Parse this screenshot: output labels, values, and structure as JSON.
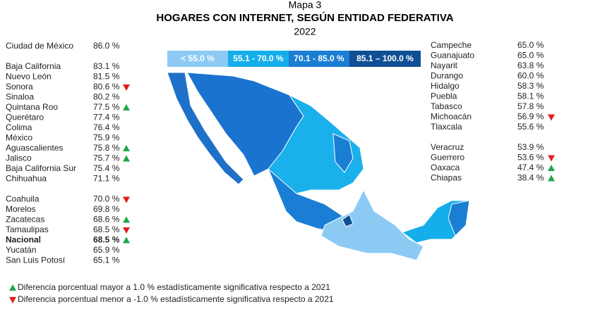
{
  "header": {
    "label": "Mapa 3",
    "title": "HOGARES CON INTERNET, SEGÚN ENTIDAD FEDERATIVA",
    "year": "2022"
  },
  "legend": [
    {
      "label": "< 55.0 %",
      "color": "#8ccaf4"
    },
    {
      "label": "55.1 - 70.0 %",
      "color": "#14aeea"
    },
    {
      "label": "70.1 - 85.0 %",
      "color": "#1a7ed3"
    },
    {
      "label": "85.1 – 100.0 %",
      "color": "#0f4f94"
    }
  ],
  "columns": [
    {
      "groups": [
        {
          "rows": [
            {
              "name": "Ciudad de México",
              "value": "86.0 %"
            }
          ]
        },
        {
          "rows": [
            {
              "name": "Baja California",
              "value": "83.1 %"
            },
            {
              "name": "Nuevo León",
              "value": "81.5 %"
            },
            {
              "name": "Sonora",
              "value": "80.6 %",
              "trend": "down"
            },
            {
              "name": "Sinaloa",
              "value": "80.2 %"
            },
            {
              "name": "Quintana Roo",
              "value": "77.5 %",
              "trend": "up"
            },
            {
              "name": "Querétaro",
              "value": "77.4 %"
            },
            {
              "name": "Colima",
              "value": "76.4 %"
            },
            {
              "name": "México",
              "value": "75.9 %"
            },
            {
              "name": "Aguascalientes",
              "value": "75.8 %",
              "trend": "up"
            },
            {
              "name": "Jalisco",
              "value": "75.7 %",
              "trend": "up"
            },
            {
              "name": "Baja California Sur",
              "value": "75.4 %"
            },
            {
              "name": "Chihuahua",
              "value": "71.1 %"
            }
          ]
        },
        {
          "rows": [
            {
              "name": "Coahuila",
              "value": "70.0 %",
              "trend": "down"
            },
            {
              "name": "Morelos",
              "value": "69.8 %"
            },
            {
              "name": "Zacatecas",
              "value": "68.6 %",
              "trend": "up"
            },
            {
              "name": "Tamaulipas",
              "value": "68.5 %",
              "trend": "down"
            },
            {
              "name": "Nacional",
              "value": "68.5 %",
              "trend": "up",
              "bold": true
            },
            {
              "name": "Yucatán",
              "value": "65.9 %"
            },
            {
              "name": "San Luis Potosí",
              "value": "65.1 %"
            }
          ]
        }
      ]
    },
    {
      "groups": [
        {
          "rows": [
            {
              "name": "Campeche",
              "value": "65.0 %"
            },
            {
              "name": "Guanajuato",
              "value": "65.0 %"
            },
            {
              "name": "Nayarit",
              "value": "63.8 %"
            },
            {
              "name": "Durango",
              "value": "60.0 %"
            },
            {
              "name": "Hidalgo",
              "value": "58.3 %"
            },
            {
              "name": "Puebla",
              "value": "58.1 %"
            },
            {
              "name": "Tabasco",
              "value": "57.8 %"
            },
            {
              "name": "Michoacán",
              "value": "56.9 %",
              "trend": "down"
            },
            {
              "name": "Tlaxcala",
              "value": "55.6 %"
            }
          ]
        },
        {
          "rows": [
            {
              "name": "Veracruz",
              "value": "53.9 %"
            },
            {
              "name": "Guerrero",
              "value": "53.6 %",
              "trend": "down"
            },
            {
              "name": "Oaxaca",
              "value": "47.4 %",
              "trend": "up"
            },
            {
              "name": "Chiapas",
              "value": "38.4 %",
              "trend": "up"
            }
          ]
        }
      ]
    }
  ],
  "notes": [
    {
      "symbol": "up",
      "text": "Diferencia porcentual mayor a 1.0 % estadísticamente significativa respecto a 2021"
    },
    {
      "symbol": "down",
      "text": "Diferencia porcentual menor a -1.0 % estadísticamente significativa respecto a 2021"
    }
  ]
}
